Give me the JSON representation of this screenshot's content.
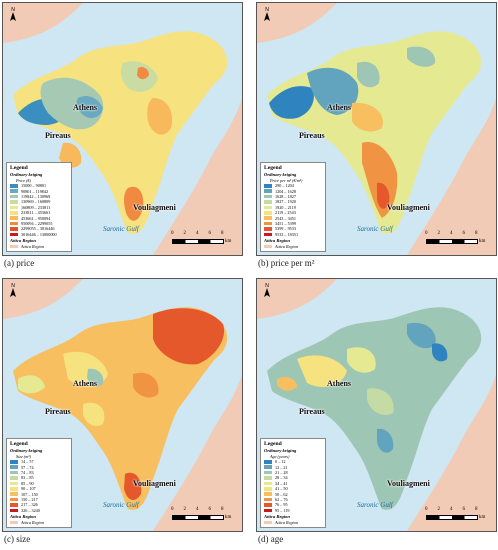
{
  "panels": [
    {
      "id": "price",
      "caption": "(a) price",
      "legend_title": "Legend",
      "legend_sub": "Ordinary kriging",
      "legend_unit": "Price (€)",
      "classes": [
        {
          "label": "15000 – 90801",
          "color": "#3a8fc0"
        },
        {
          "label": "90801 – 119842",
          "color": "#6aaac0"
        },
        {
          "label": "119842 – 130969",
          "color": "#a6c9b4"
        },
        {
          "label": "130969 – 160809",
          "color": "#c9dca3"
        },
        {
          "label": "160809 – 233811",
          "color": "#e6ea8f"
        },
        {
          "label": "233811 – 453661",
          "color": "#f6e07d"
        },
        {
          "label": "453661 – 950094",
          "color": "#f7b95c"
        },
        {
          "label": "950094 – 2299055",
          "color": "#f08a40"
        },
        {
          "label": "2299055 – 3016446",
          "color": "#e4522a"
        },
        {
          "label": "3016446 – 13000000",
          "color": "#c8191c"
        }
      ]
    },
    {
      "id": "price-per-m2",
      "caption": "(b) price per m²",
      "legend_title": "Legend",
      "legend_sub": "Ordinary kriging",
      "legend_unit": "Price per m² (€/m²)",
      "classes": [
        {
          "label": "290 – 1204",
          "color": "#2f84bf"
        },
        {
          "label": "1204 – 1628",
          "color": "#62a3bd"
        },
        {
          "label": "1628 – 1827",
          "color": "#9ec6b5"
        },
        {
          "label": "1827 – 1920",
          "color": "#c5dba5"
        },
        {
          "label": "1920 – 2119",
          "color": "#e5ea92"
        },
        {
          "label": "2119 – 2543",
          "color": "#f6e27f"
        },
        {
          "label": "2543 – 3451",
          "color": "#f7bf60"
        },
        {
          "label": "3451 – 5399",
          "color": "#f09444"
        },
        {
          "label": "5399 – 9533",
          "color": "#e4582c"
        },
        {
          "label": "9533 – 18351",
          "color": "#c8191c"
        }
      ]
    },
    {
      "id": "size",
      "caption": "(c) size",
      "legend_title": "Legend",
      "legend_sub": "Ordinary kriging",
      "legend_unit": "Size (m²)",
      "classes": [
        {
          "label": "14 – 57",
          "color": "#2f84bf"
        },
        {
          "label": "57 – 74",
          "color": "#62a3bd"
        },
        {
          "label": "74 – 83",
          "color": "#9ec6b5"
        },
        {
          "label": "83 – 85",
          "color": "#c5dba5"
        },
        {
          "label": "85 – 90",
          "color": "#e5ea92"
        },
        {
          "label": "90 – 107",
          "color": "#f6e27f"
        },
        {
          "label": "107 – 150",
          "color": "#f7bf60"
        },
        {
          "label": "150 – 217",
          "color": "#f09444"
        },
        {
          "label": "217 – 326",
          "color": "#e4582c"
        },
        {
          "label": "326 – 3240",
          "color": "#c8191c"
        }
      ]
    },
    {
      "id": "age",
      "caption": "(d) age",
      "legend_title": "Legend",
      "legend_sub": "Ordinary kriging",
      "legend_unit": "Age (years)",
      "classes": [
        {
          "label": "0 – 12",
          "color": "#2f84bf"
        },
        {
          "label": "12 – 21",
          "color": "#62a3bd"
        },
        {
          "label": "21 – 28",
          "color": "#9ec6b5"
        },
        {
          "label": "28 – 34",
          "color": "#c5dba5"
        },
        {
          "label": "34 – 41",
          "color": "#e5ea92"
        },
        {
          "label": "41 – 50",
          "color": "#f6e27f"
        },
        {
          "label": "50 – 62",
          "color": "#f7bf60"
        },
        {
          "label": "62 – 76",
          "color": "#f09444"
        },
        {
          "label": "76 – 95",
          "color": "#e4582c"
        },
        {
          "label": "95 – 119",
          "color": "#c8191c"
        }
      ]
    }
  ],
  "common": {
    "region_label": "Attica Region",
    "region_sub": "Attica Region",
    "city_athens": "Athens",
    "city_pireaus": "Pireaus",
    "city_vouliagmeni": "Vouliagmeni",
    "gulf": "Saronic Gulf",
    "north": "N",
    "scale_ticks": [
      "0",
      "2",
      "4",
      "6",
      "8"
    ],
    "scale_unit": "km",
    "colors": {
      "sea": "#cfe6f3",
      "land": "#f2cbb6"
    }
  }
}
